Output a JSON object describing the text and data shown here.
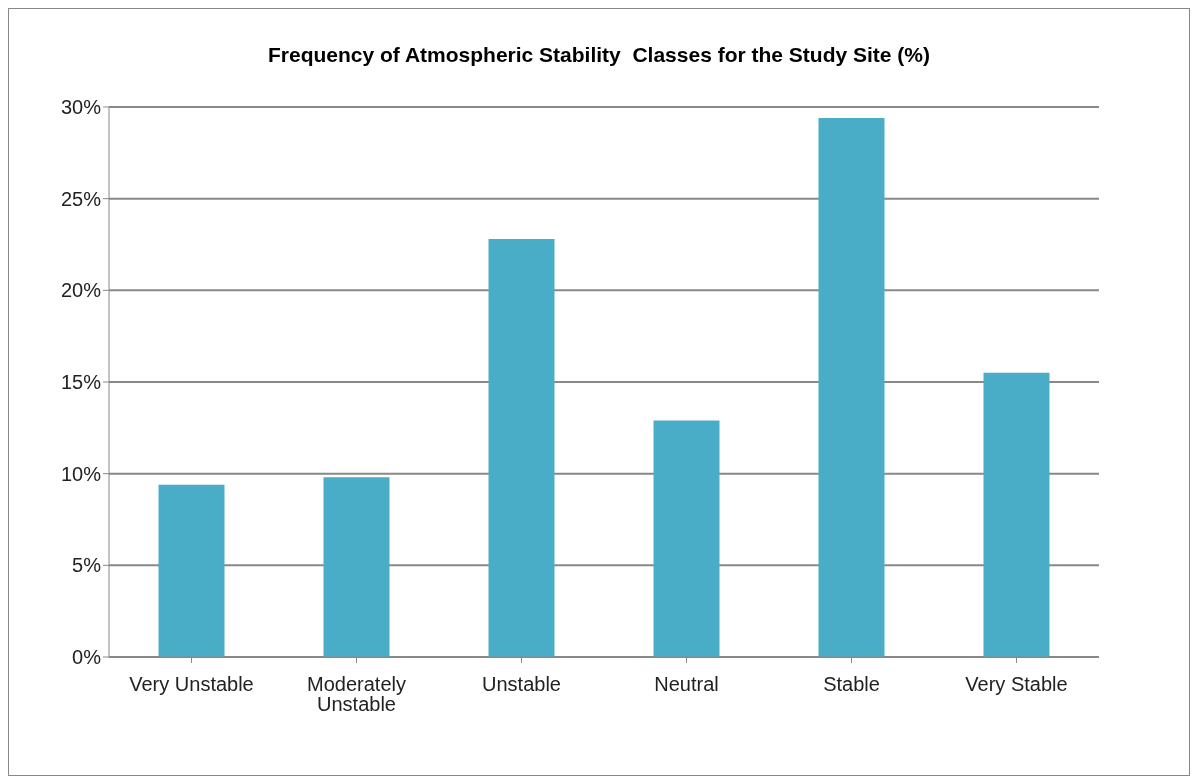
{
  "chart_data": {
    "type": "bar",
    "title": "Frequency of Atmospheric Stability  Classes for the Study Site (%)",
    "categories": [
      "Very Unstable",
      "Moderately Unstable",
      "Unstable",
      "Neutral",
      "Stable",
      "Very Stable"
    ],
    "values": [
      9.4,
      9.8,
      22.8,
      12.9,
      29.4,
      15.5
    ],
    "color": "#4aadc8",
    "ylim": [
      0,
      30
    ],
    "yticks": [
      {
        "value": 0,
        "label": "0%"
      },
      {
        "value": 5,
        "label": "5%"
      },
      {
        "value": 10,
        "label": "10%"
      },
      {
        "value": 15,
        "label": "15%"
      },
      {
        "value": 20,
        "label": "20%"
      },
      {
        "value": 25,
        "label": "25%"
      },
      {
        "value": 30,
        "label": "30%"
      }
    ],
    "grid": "y"
  }
}
